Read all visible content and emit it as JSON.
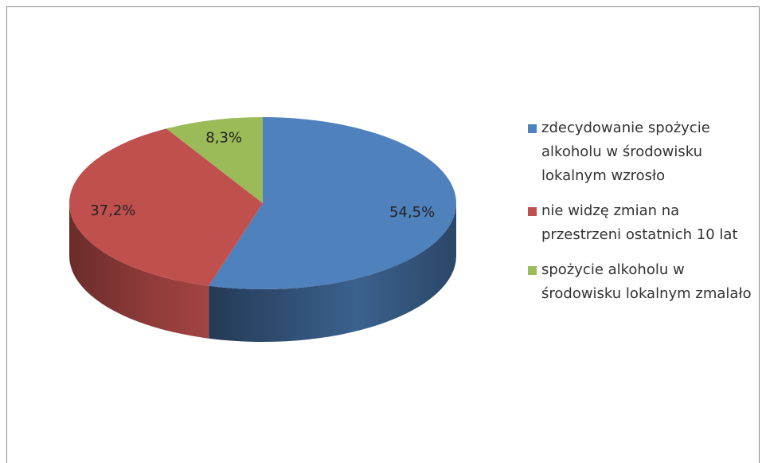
{
  "chart_data": {
    "type": "pie",
    "categories": [
      "zdecydowanie spożycie alkoholu w środowisku lokalnym wzrosło",
      "nie widzę zmian na przestrzeni ostatnich 10 lat",
      "spożycie alkoholu w środowisku lokalnym zmalało"
    ],
    "values": [
      54.5,
      37.2,
      8.3
    ],
    "value_labels": [
      "54,5%",
      "37,2%",
      "8,3%"
    ],
    "colors": [
      "#4f81bd",
      "#c0504d",
      "#9bbb59"
    ],
    "legend": "right"
  }
}
